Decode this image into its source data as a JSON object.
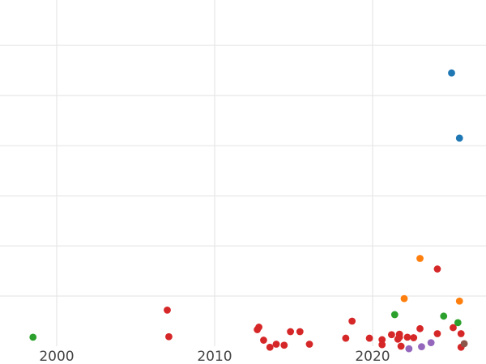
{
  "chart_data": {
    "type": "scatter",
    "title": "",
    "xlabel": "",
    "ylabel": "",
    "grid": true,
    "legend": "none",
    "xlim": [
      1996.5,
      2027.2
    ],
    "ylim": [
      0,
      700
    ],
    "x_ticks": [
      2000,
      2010,
      2020
    ],
    "x_tick_labels": [
      "2000",
      "2010",
      "2020"
    ],
    "y_gridlines": [
      100,
      200,
      300,
      400,
      500,
      600,
      700
    ],
    "series": [
      {
        "color": "#1f77b4",
        "points": [
          {
            "x": 2025.0,
            "y": 545
          },
          {
            "x": 2025.5,
            "y": 415
          }
        ]
      },
      {
        "color": "#ff7f0e",
        "points": [
          {
            "x": 2023.0,
            "y": 175
          },
          {
            "x": 2022.0,
            "y": 95
          },
          {
            "x": 2025.5,
            "y": 90
          }
        ]
      },
      {
        "color": "#2ca02c",
        "points": [
          {
            "x": 1998.5,
            "y": 18
          },
          {
            "x": 2021.4,
            "y": 63
          },
          {
            "x": 2024.5,
            "y": 60
          },
          {
            "x": 2025.4,
            "y": 47
          }
        ]
      },
      {
        "color": "#d62728",
        "points": [
          {
            "x": 2007.0,
            "y": 72
          },
          {
            "x": 2007.1,
            "y": 19
          },
          {
            "x": 2012.7,
            "y": 33
          },
          {
            "x": 2012.8,
            "y": 38
          },
          {
            "x": 2013.1,
            "y": 12
          },
          {
            "x": 2013.5,
            "y": -2
          },
          {
            "x": 2013.9,
            "y": 4
          },
          {
            "x": 2014.4,
            "y": 2
          },
          {
            "x": 2014.8,
            "y": 29
          },
          {
            "x": 2015.4,
            "y": 29
          },
          {
            "x": 2016.0,
            "y": 4
          },
          {
            "x": 2018.3,
            "y": 16
          },
          {
            "x": 2018.7,
            "y": 50
          },
          {
            "x": 2019.8,
            "y": 16
          },
          {
            "x": 2020.6,
            "y": 3
          },
          {
            "x": 2020.6,
            "y": 13
          },
          {
            "x": 2021.2,
            "y": 23
          },
          {
            "x": 2021.6,
            "y": 14
          },
          {
            "x": 2021.7,
            "y": 18
          },
          {
            "x": 2021.7,
            "y": 24
          },
          {
            "x": 2021.8,
            "y": 0
          },
          {
            "x": 2022.2,
            "y": 18
          },
          {
            "x": 2022.6,
            "y": 17
          },
          {
            "x": 2023.0,
            "y": 35
          },
          {
            "x": 2024.1,
            "y": 154
          },
          {
            "x": 2024.1,
            "y": 25
          },
          {
            "x": 2025.1,
            "y": 37
          },
          {
            "x": 2025.6,
            "y": 25
          },
          {
            "x": 2025.6,
            "y": -2
          }
        ]
      },
      {
        "color": "#9467bd",
        "points": [
          {
            "x": 2022.3,
            "y": -5
          },
          {
            "x": 2023.1,
            "y": -1
          },
          {
            "x": 2023.7,
            "y": 7
          }
        ]
      },
      {
        "color": "#8c564b",
        "points": [
          {
            "x": 2025.8,
            "y": 5
          }
        ]
      }
    ]
  }
}
